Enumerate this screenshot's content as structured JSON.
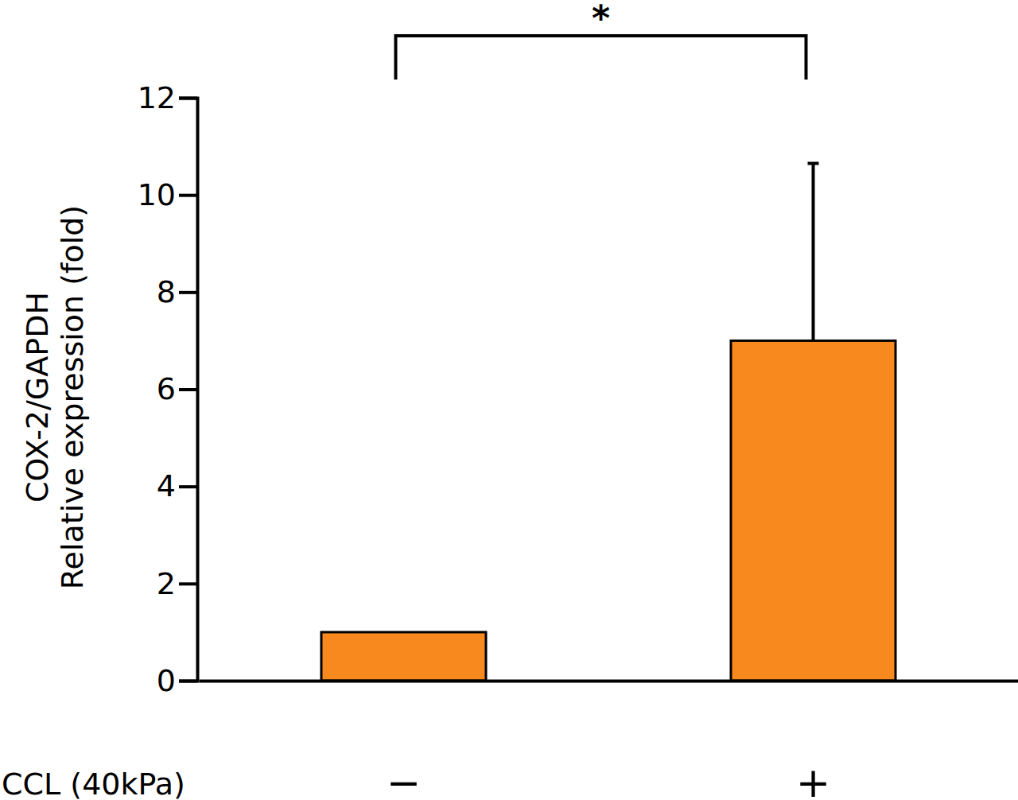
{
  "chart_data": {
    "type": "bar",
    "categories": [
      "−",
      "+"
    ],
    "values": [
      1,
      7
    ],
    "errors": [
      null,
      3.65
    ],
    "color": "#f7891f",
    "x_label": "CCL (40kPa)",
    "y_label": [
      "COX-2/GAPDH",
      "Relative expression (fold)"
    ],
    "ylim": [
      0,
      12
    ],
    "yticks": [
      0,
      2,
      4,
      6,
      8,
      10,
      12
    ],
    "grid": false,
    "annotations": [
      {
        "text": "*",
        "between": [
          "−",
          "+"
        ]
      }
    ]
  }
}
